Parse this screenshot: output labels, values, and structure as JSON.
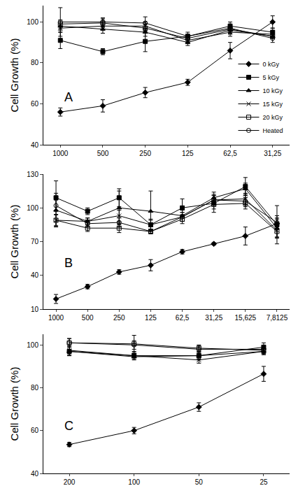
{
  "chart_data": [
    {
      "type": "line",
      "y_label": "Cell Growth (%)",
      "annotations": [
        "A"
      ],
      "categories": [
        "1000",
        "500",
        "250",
        "125",
        "62,5",
        "31,25"
      ],
      "ylim": [
        40,
        108
      ],
      "yticks": [
        40,
        60,
        80,
        100
      ],
      "grid": false,
      "legend": "lower right",
      "series": [
        {
          "name": "0 kGy",
          "color": "#000000",
          "marker": "diamond",
          "values": [
            56,
            59,
            65.5,
            70.5,
            86,
            100
          ],
          "errors": [
            2,
            3,
            2.5,
            1.5,
            4,
            3
          ]
        },
        {
          "name": "5 kGy",
          "color": "#000000",
          "marker": "square",
          "values": [
            91,
            85.5,
            90.5,
            93,
            98,
            95
          ],
          "errors": [
            4,
            1.5,
            5,
            1,
            2,
            2
          ]
        },
        {
          "name": "10 kGy",
          "color": "#000000",
          "marker": "triangle-up",
          "values": [
            98,
            96.5,
            95,
            90,
            96,
            93
          ],
          "errors": [
            2,
            2,
            2,
            1.5,
            2,
            1
          ]
        },
        {
          "name": "15 kGy",
          "color": "#000000",
          "marker": "x",
          "values": [
            97,
            98,
            98,
            91,
            95,
            94
          ],
          "errors": [
            2,
            2,
            2,
            1.5,
            2,
            1
          ]
        },
        {
          "name": "20 kGy",
          "color": "#000000",
          "marker": "square-open",
          "values": [
            99,
            99.5,
            97,
            92,
            96.5,
            93
          ],
          "errors": [
            2,
            2,
            2,
            1.5,
            2,
            1
          ]
        },
        {
          "name": "Heated",
          "color": "#000000",
          "marker": "circle-open",
          "values": [
            100,
            100,
            99.5,
            93,
            97,
            92
          ],
          "errors": [
            7,
            2,
            3,
            2,
            2,
            2
          ]
        }
      ]
    },
    {
      "type": "line",
      "y_label": "Cell Growth (%)",
      "annotations": [
        "B"
      ],
      "categories": [
        "1000",
        "500",
        "250",
        "125",
        "62,5",
        "31,25",
        "15,625",
        "7,8125"
      ],
      "ylim": [
        10,
        130
      ],
      "yticks": [
        10,
        40,
        70,
        100,
        130
      ],
      "grid": false,
      "series": [
        {
          "color": "#000000",
          "marker": "diamond",
          "values": [
            19,
            30,
            43,
            49,
            61,
            68,
            75,
            86
          ],
          "errors": [
            4,
            2,
            2,
            5,
            2,
            1,
            8,
            5
          ]
        },
        {
          "color": "#000000",
          "marker": "square",
          "values": [
            109,
            97,
            109,
            85,
            100,
            104,
            119,
            85
          ],
          "errors": [
            15,
            3,
            8,
            4,
            8,
            8,
            8,
            17
          ]
        },
        {
          "color": "#000000",
          "marker": "triangle-up",
          "values": [
            98,
            88,
            100,
            97,
            93,
            109,
            117,
            82
          ],
          "errors": [
            15,
            3,
            15,
            18,
            5,
            5,
            5,
            8
          ]
        },
        {
          "color": "#000000",
          "marker": "x",
          "values": [
            89,
            88,
            93,
            85,
            92,
            107,
            108,
            80
          ],
          "errors": [
            5,
            3,
            5,
            5,
            4,
            4,
            5,
            6
          ]
        },
        {
          "color": "#000000",
          "marker": "square-open",
          "values": [
            89,
            82,
            82,
            79,
            90,
            103,
            104,
            79
          ],
          "errors": [
            5,
            3,
            4,
            2,
            4,
            4,
            5,
            6
          ]
        },
        {
          "color": "#000000",
          "marker": "circle-open",
          "values": [
            102,
            86,
            87,
            79,
            92,
            107,
            106,
            87
          ],
          "errors": [
            5,
            3,
            4,
            2,
            4,
            4,
            5,
            6
          ]
        }
      ]
    },
    {
      "type": "line",
      "y_label": "Cell Growth (%)",
      "annotations": [
        "C"
      ],
      "categories": [
        "200",
        "100",
        "50",
        "25"
      ],
      "ylim": [
        40,
        105
      ],
      "yticks": [
        40,
        60,
        80,
        100
      ],
      "grid": false,
      "series": [
        {
          "color": "#000000",
          "marker": "diamond",
          "values": [
            53.5,
            60,
            71,
            86.5
          ],
          "errors": [
            1,
            1.5,
            2,
            3.5
          ]
        },
        {
          "color": "#000000",
          "marker": "square",
          "values": [
            97,
            95,
            95,
            99
          ],
          "errors": [
            2,
            2,
            2,
            2
          ]
        },
        {
          "color": "#000000",
          "marker": "triangle-up",
          "values": [
            97,
            94.5,
            95,
            97
          ],
          "errors": [
            2,
            1,
            1.5,
            1.5
          ]
        },
        {
          "color": "#000000",
          "marker": "x",
          "values": [
            97.5,
            95,
            93,
            97
          ],
          "errors": [
            2,
            1,
            1.5,
            1.5
          ]
        },
        {
          "color": "#000000",
          "marker": "square-open",
          "values": [
            101,
            100.5,
            98.5,
            97.5
          ],
          "errors": [
            2,
            4,
            1.5,
            1.5
          ]
        },
        {
          "color": "#000000",
          "marker": "circle-open",
          "values": [
            101,
            100,
            98,
            98
          ],
          "errors": [
            2,
            2,
            1.5,
            1.5
          ]
        }
      ]
    }
  ]
}
